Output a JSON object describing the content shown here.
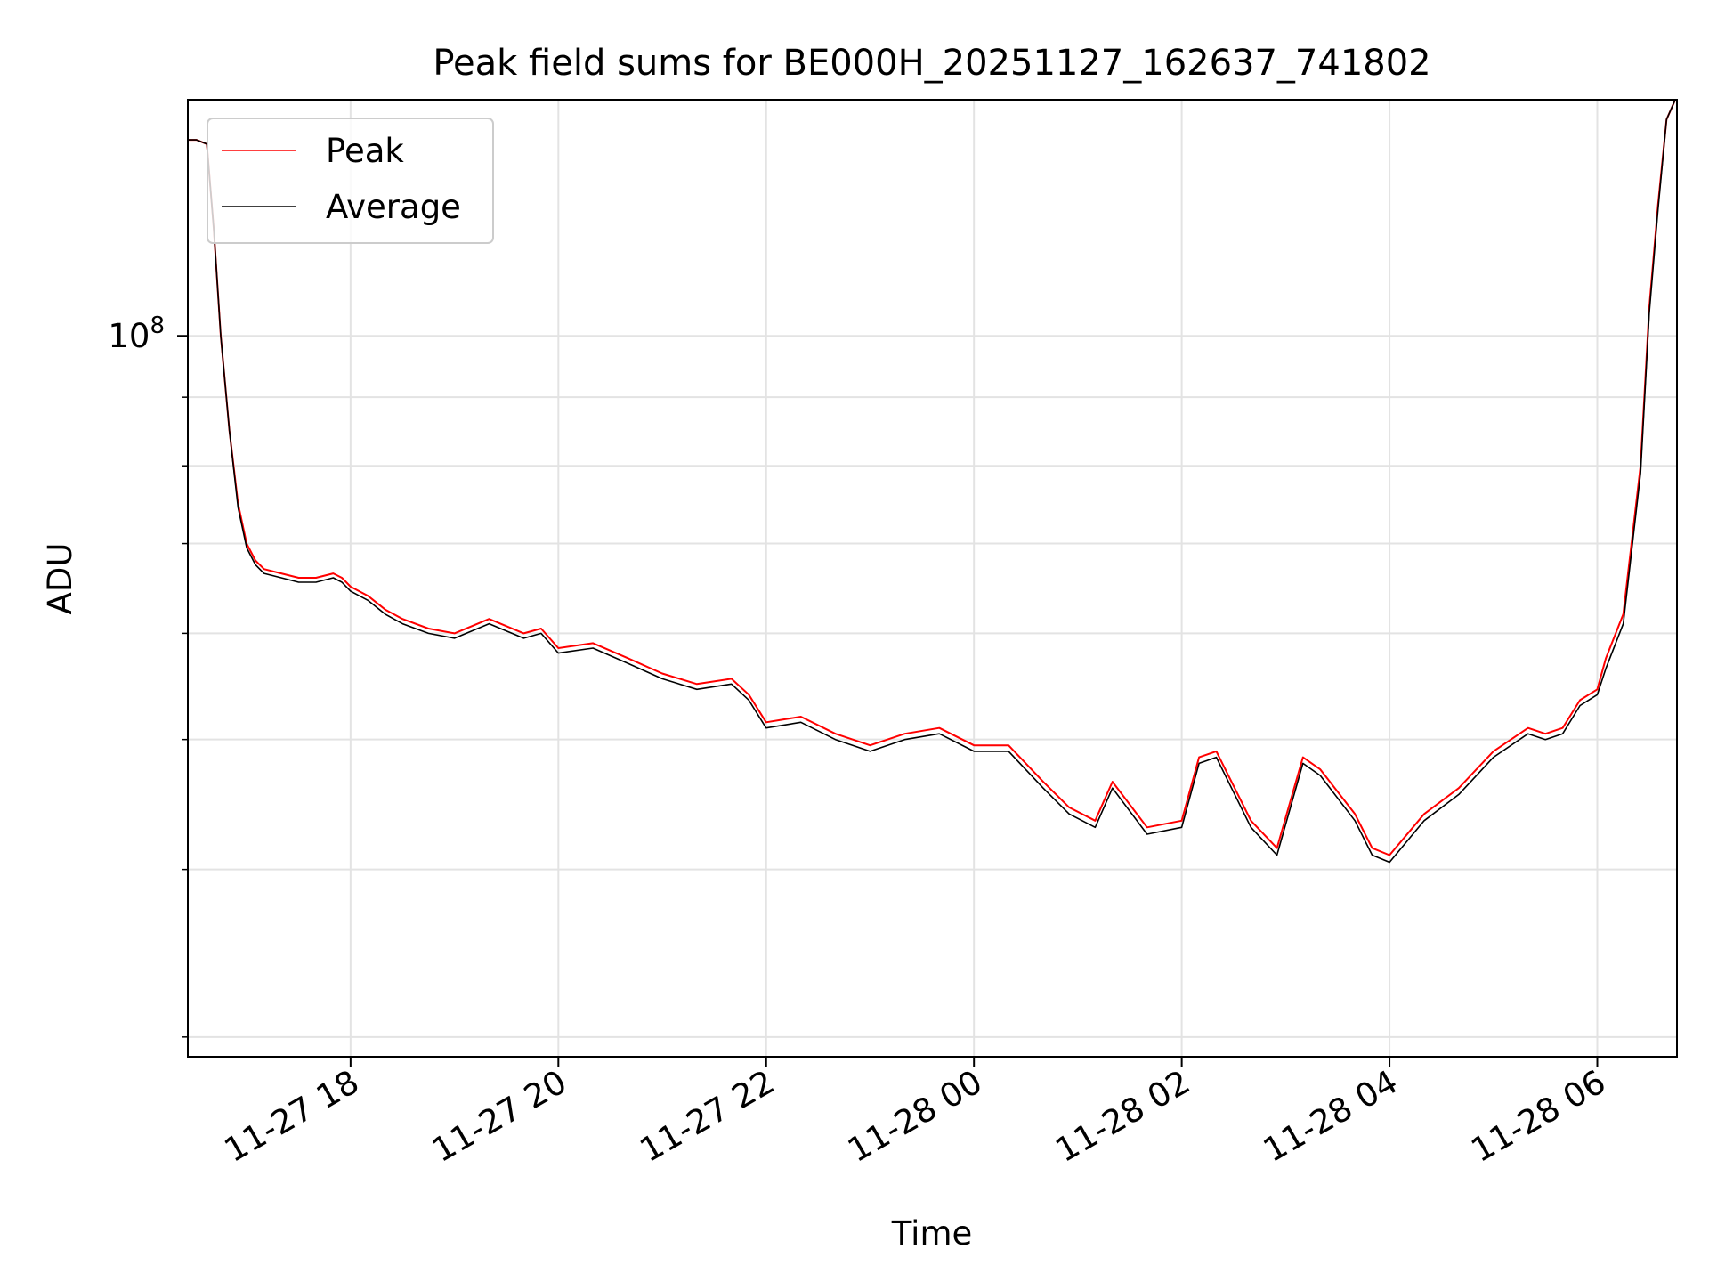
{
  "chart_data": {
    "type": "line",
    "title": "Peak field sums for BE000H_20251127_162637_741802",
    "xlabel": "Time",
    "ylabel": "ADU",
    "yscale": "log",
    "grid": true,
    "legend_position": "upper-left",
    "x_tick_labels": [
      "11-27 18",
      "11-27 20",
      "11-27 22",
      "11-28 00",
      "11-28 02",
      "11-28 04",
      "11-28 06"
    ],
    "x_ticks": [
      "2025-11-27T18:00",
      "2025-11-27T20:00",
      "2025-11-27T22:00",
      "2025-11-28T00:00",
      "2025-11-28T02:00",
      "2025-11-28T04:00",
      "2025-11-28T06:00"
    ],
    "xlim": [
      "2025-11-27T16:26",
      "2025-11-28T06:46"
    ],
    "ylim": [
      29000000,
      150000000
    ],
    "y_tick_labels": [
      {
        "value": 100000000,
        "base": "10",
        "exp": "8"
      }
    ],
    "series": [
      {
        "name": "Peak",
        "color": "#ff0000",
        "x": [
          "2025-11-27T16:26",
          "2025-11-27T16:31",
          "2025-11-27T16:37",
          "2025-11-27T16:41",
          "2025-11-27T16:45",
          "2025-11-27T16:50",
          "2025-11-27T16:55",
          "2025-11-27T17:00",
          "2025-11-27T17:05",
          "2025-11-27T17:10",
          "2025-11-27T17:20",
          "2025-11-27T17:30",
          "2025-11-27T17:40",
          "2025-11-27T17:50",
          "2025-11-27T17:55",
          "2025-11-27T18:00",
          "2025-11-27T18:05",
          "2025-11-27T18:10",
          "2025-11-27T18:20",
          "2025-11-27T18:30",
          "2025-11-27T18:45",
          "2025-11-27T19:00",
          "2025-11-27T19:20",
          "2025-11-27T19:40",
          "2025-11-27T19:50",
          "2025-11-27T20:00",
          "2025-11-27T20:20",
          "2025-11-27T20:40",
          "2025-11-27T21:00",
          "2025-11-27T21:20",
          "2025-11-27T21:40",
          "2025-11-27T21:50",
          "2025-11-27T22:00",
          "2025-11-27T22:20",
          "2025-11-27T22:40",
          "2025-11-27T23:00",
          "2025-11-27T23:20",
          "2025-11-27T23:40",
          "2025-11-28T00:00",
          "2025-11-28T00:20",
          "2025-11-28T00:40",
          "2025-11-28T00:55",
          "2025-11-28T01:10",
          "2025-11-28T01:20",
          "2025-11-28T01:40",
          "2025-11-28T02:00",
          "2025-11-28T02:10",
          "2025-11-28T02:20",
          "2025-11-28T02:40",
          "2025-11-28T02:55",
          "2025-11-28T03:10",
          "2025-11-28T03:20",
          "2025-11-28T03:40",
          "2025-11-28T03:50",
          "2025-11-28T04:00",
          "2025-11-28T04:20",
          "2025-11-28T04:40",
          "2025-11-28T05:00",
          "2025-11-28T05:20",
          "2025-11-28T05:30",
          "2025-11-28T05:40",
          "2025-11-28T05:50",
          "2025-11-28T06:00",
          "2025-11-28T06:05",
          "2025-11-28T06:15",
          "2025-11-28T06:25",
          "2025-11-28T06:30",
          "2025-11-28T06:35",
          "2025-11-28T06:40",
          "2025-11-28T06:45"
        ],
        "values": [
          140000000,
          140000000,
          139000000,
          120000000,
          100000000,
          85000000,
          75000000,
          70000000,
          68000000,
          67000000,
          66500000,
          66000000,
          66000000,
          66500000,
          66000000,
          65000000,
          64500000,
          64000000,
          62500000,
          61500000,
          60500000,
          60000000,
          61500000,
          60000000,
          60500000,
          58500000,
          59000000,
          57500000,
          56000000,
          55000000,
          55500000,
          54000000,
          51500000,
          52000000,
          50500000,
          49500000,
          50500000,
          51000000,
          49500000,
          49500000,
          46500000,
          44500000,
          43500000,
          46500000,
          43000000,
          43500000,
          48500000,
          49000000,
          43500000,
          41500000,
          48500000,
          47500000,
          44000000,
          41500000,
          41000000,
          44000000,
          46000000,
          49000000,
          51000000,
          50500000,
          51000000,
          53500000,
          54500000,
          57500000,
          62000000,
          80000000,
          105000000,
          125000000,
          145000000,
          150000000
        ]
      },
      {
        "name": "Average",
        "color": "#000000",
        "x": [
          "2025-11-27T16:26",
          "2025-11-27T16:31",
          "2025-11-27T16:37",
          "2025-11-27T16:41",
          "2025-11-27T16:45",
          "2025-11-27T16:50",
          "2025-11-27T16:55",
          "2025-11-27T17:00",
          "2025-11-27T17:05",
          "2025-11-27T17:10",
          "2025-11-27T17:20",
          "2025-11-27T17:30",
          "2025-11-27T17:40",
          "2025-11-27T17:50",
          "2025-11-27T17:55",
          "2025-11-27T18:00",
          "2025-11-27T18:05",
          "2025-11-27T18:10",
          "2025-11-27T18:20",
          "2025-11-27T18:30",
          "2025-11-27T18:45",
          "2025-11-27T19:00",
          "2025-11-27T19:20",
          "2025-11-27T19:40",
          "2025-11-27T19:50",
          "2025-11-27T20:00",
          "2025-11-27T20:20",
          "2025-11-27T20:40",
          "2025-11-27T21:00",
          "2025-11-27T21:20",
          "2025-11-27T21:40",
          "2025-11-27T21:50",
          "2025-11-27T22:00",
          "2025-11-27T22:20",
          "2025-11-27T22:40",
          "2025-11-27T23:00",
          "2025-11-27T23:20",
          "2025-11-27T23:40",
          "2025-11-28T00:00",
          "2025-11-28T00:20",
          "2025-11-28T00:40",
          "2025-11-28T00:55",
          "2025-11-28T01:10",
          "2025-11-28T01:20",
          "2025-11-28T01:40",
          "2025-11-28T02:00",
          "2025-11-28T02:10",
          "2025-11-28T02:20",
          "2025-11-28T02:40",
          "2025-11-28T02:55",
          "2025-11-28T03:10",
          "2025-11-28T03:20",
          "2025-11-28T03:40",
          "2025-11-28T03:50",
          "2025-11-28T04:00",
          "2025-11-28T04:20",
          "2025-11-28T04:40",
          "2025-11-28T05:00",
          "2025-11-28T05:20",
          "2025-11-28T05:30",
          "2025-11-28T05:40",
          "2025-11-28T05:50",
          "2025-11-28T06:00",
          "2025-11-28T06:05",
          "2025-11-28T06:15",
          "2025-11-28T06:25",
          "2025-11-28T06:30",
          "2025-11-28T06:35",
          "2025-11-28T06:40",
          "2025-11-28T06:45"
        ],
        "values": [
          140000000,
          140000000,
          139000000,
          120000000,
          100000000,
          85000000,
          74500000,
          69500000,
          67500000,
          66500000,
          66000000,
          65500000,
          65500000,
          66000000,
          65500000,
          64500000,
          64000000,
          63500000,
          62000000,
          61000000,
          60000000,
          59500000,
          61000000,
          59500000,
          60000000,
          58000000,
          58500000,
          57000000,
          55500000,
          54500000,
          55000000,
          53500000,
          51000000,
          51500000,
          50000000,
          49000000,
          50000000,
          50500000,
          49000000,
          49000000,
          46000000,
          44000000,
          43000000,
          46000000,
          42500000,
          43000000,
          48000000,
          48500000,
          43000000,
          41000000,
          48000000,
          47000000,
          43500000,
          41000000,
          40500000,
          43500000,
          45500000,
          48500000,
          50500000,
          50000000,
          50500000,
          53000000,
          54000000,
          56500000,
          61000000,
          79000000,
          104000000,
          124000000,
          145000000,
          150000000
        ]
      }
    ]
  }
}
